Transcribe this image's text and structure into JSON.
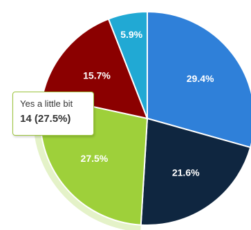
{
  "chart_data": {
    "type": "pie",
    "slices": [
      {
        "label": "",
        "value": 29.4,
        "display": "29.4%",
        "color": "#2f80d9"
      },
      {
        "label": "",
        "value": 21.6,
        "display": "21.6%",
        "color": "#0f2640"
      },
      {
        "label": "Yes a little bit",
        "value": 27.5,
        "display": "27.5%",
        "color": "#9ed03a"
      },
      {
        "label": "",
        "value": 15.7,
        "display": "15.7%",
        "color": "#8b0000"
      },
      {
        "label": "",
        "value": 5.9,
        "display": "5.9%",
        "color": "#21a9d4"
      }
    ],
    "start_angle_deg": 0,
    "direction": "clockwise",
    "highlighted_index": 2
  },
  "tooltip": {
    "label": "Yes a little bit",
    "value": "14 (27.5%)",
    "border_color": "#9bc43a"
  }
}
